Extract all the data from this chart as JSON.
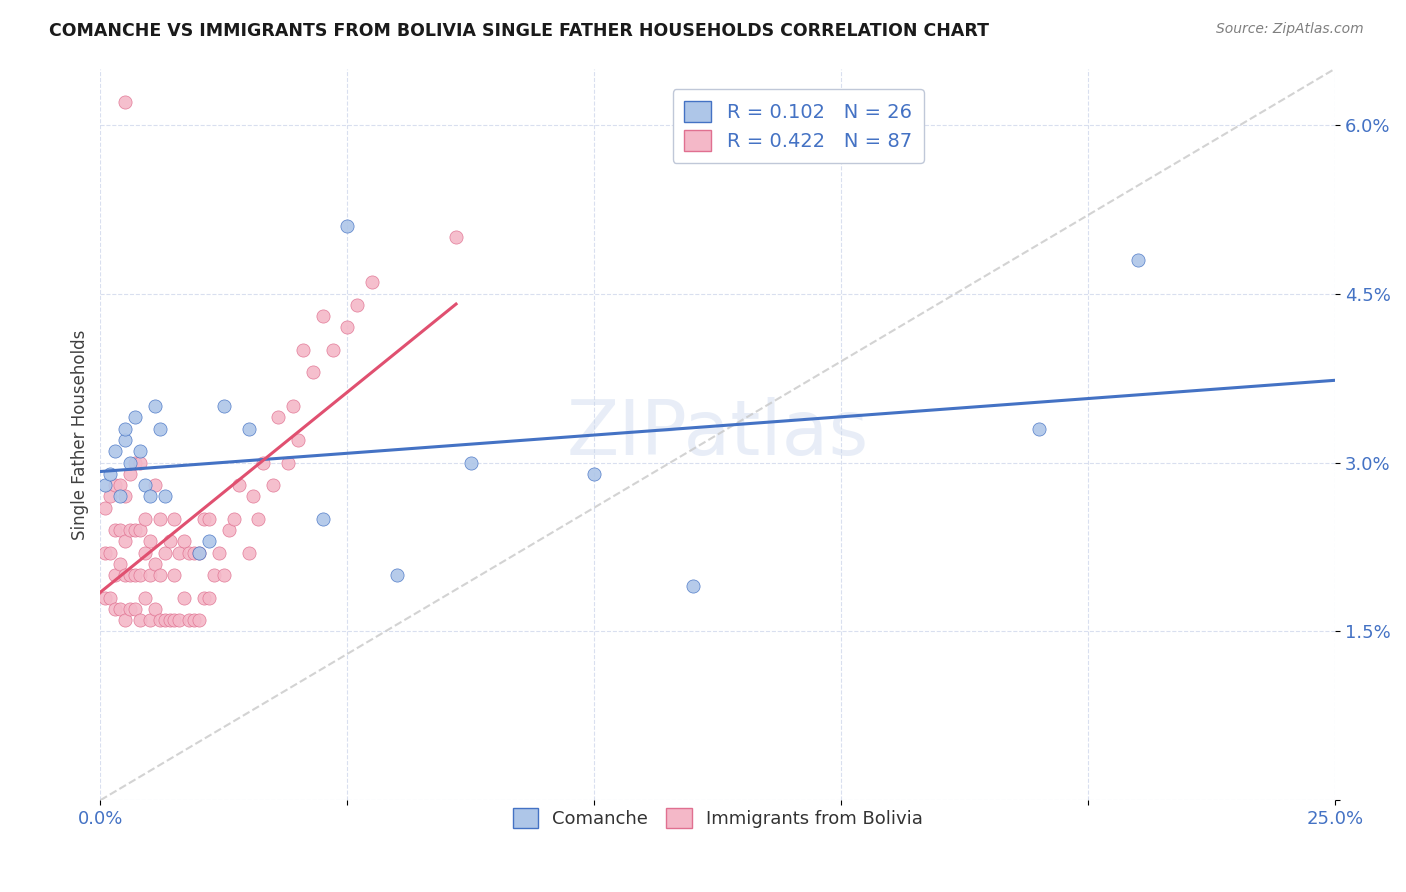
{
  "title": "COMANCHE VS IMMIGRANTS FROM BOLIVIA SINGLE FATHER HOUSEHOLDS CORRELATION CHART",
  "source": "Source: ZipAtlas.com",
  "ylabel": "Single Father Households",
  "xlim": [
    0.0,
    0.25
  ],
  "ylim": [
    0.0,
    0.065
  ],
  "xticks": [
    0.0,
    0.05,
    0.1,
    0.15,
    0.2,
    0.25
  ],
  "xticklabels": [
    "0.0%",
    "",
    "",
    "",
    "",
    "25.0%"
  ],
  "yticks": [
    0.0,
    0.015,
    0.03,
    0.045,
    0.06
  ],
  "yticklabels": [
    "",
    "1.5%",
    "3.0%",
    "4.5%",
    "6.0%"
  ],
  "R_comanche": 0.102,
  "N_comanche": 26,
  "R_bolivia": 0.422,
  "N_bolivia": 87,
  "color_comanche_fill": "#aec6e8",
  "color_comanche_edge": "#4472c4",
  "color_bolivia_fill": "#f4b8c8",
  "color_bolivia_edge": "#e07090",
  "color_comanche_line": "#4472c4",
  "color_bolivia_line": "#e05070",
  "color_diag": "#c8c8c8",
  "watermark": "ZIPatlas",
  "comanche_x": [
    0.001,
    0.002,
    0.003,
    0.004,
    0.005,
    0.005,
    0.006,
    0.007,
    0.008,
    0.009,
    0.01,
    0.011,
    0.012,
    0.013,
    0.02,
    0.022,
    0.025,
    0.03,
    0.045,
    0.05,
    0.06,
    0.075,
    0.1,
    0.12,
    0.19,
    0.21
  ],
  "comanche_y": [
    0.028,
    0.029,
    0.031,
    0.027,
    0.032,
    0.033,
    0.03,
    0.034,
    0.031,
    0.028,
    0.027,
    0.035,
    0.033,
    0.027,
    0.022,
    0.023,
    0.035,
    0.033,
    0.025,
    0.051,
    0.02,
    0.03,
    0.029,
    0.019,
    0.033,
    0.048
  ],
  "bolivia_x": [
    0.001,
    0.001,
    0.001,
    0.002,
    0.002,
    0.002,
    0.003,
    0.003,
    0.003,
    0.003,
    0.004,
    0.004,
    0.004,
    0.004,
    0.005,
    0.005,
    0.005,
    0.005,
    0.005,
    0.006,
    0.006,
    0.006,
    0.006,
    0.007,
    0.007,
    0.007,
    0.007,
    0.008,
    0.008,
    0.008,
    0.008,
    0.009,
    0.009,
    0.009,
    0.01,
    0.01,
    0.01,
    0.011,
    0.011,
    0.011,
    0.012,
    0.012,
    0.012,
    0.013,
    0.013,
    0.014,
    0.014,
    0.015,
    0.015,
    0.015,
    0.016,
    0.016,
    0.017,
    0.017,
    0.018,
    0.018,
    0.019,
    0.019,
    0.02,
    0.02,
    0.021,
    0.021,
    0.022,
    0.022,
    0.023,
    0.024,
    0.025,
    0.026,
    0.027,
    0.028,
    0.03,
    0.031,
    0.032,
    0.033,
    0.035,
    0.036,
    0.038,
    0.039,
    0.04,
    0.041,
    0.043,
    0.045,
    0.047,
    0.05,
    0.052,
    0.055,
    0.072
  ],
  "bolivia_y": [
    0.018,
    0.022,
    0.026,
    0.018,
    0.022,
    0.027,
    0.017,
    0.02,
    0.024,
    0.028,
    0.017,
    0.021,
    0.024,
    0.028,
    0.016,
    0.02,
    0.023,
    0.027,
    0.062,
    0.017,
    0.02,
    0.024,
    0.029,
    0.017,
    0.02,
    0.024,
    0.03,
    0.016,
    0.02,
    0.024,
    0.03,
    0.018,
    0.022,
    0.025,
    0.016,
    0.02,
    0.023,
    0.017,
    0.021,
    0.028,
    0.016,
    0.02,
    0.025,
    0.016,
    0.022,
    0.016,
    0.023,
    0.016,
    0.02,
    0.025,
    0.016,
    0.022,
    0.018,
    0.023,
    0.016,
    0.022,
    0.016,
    0.022,
    0.016,
    0.022,
    0.018,
    0.025,
    0.018,
    0.025,
    0.02,
    0.022,
    0.02,
    0.024,
    0.025,
    0.028,
    0.022,
    0.027,
    0.025,
    0.03,
    0.028,
    0.034,
    0.03,
    0.035,
    0.032,
    0.04,
    0.038,
    0.043,
    0.04,
    0.042,
    0.044,
    0.046,
    0.05
  ]
}
